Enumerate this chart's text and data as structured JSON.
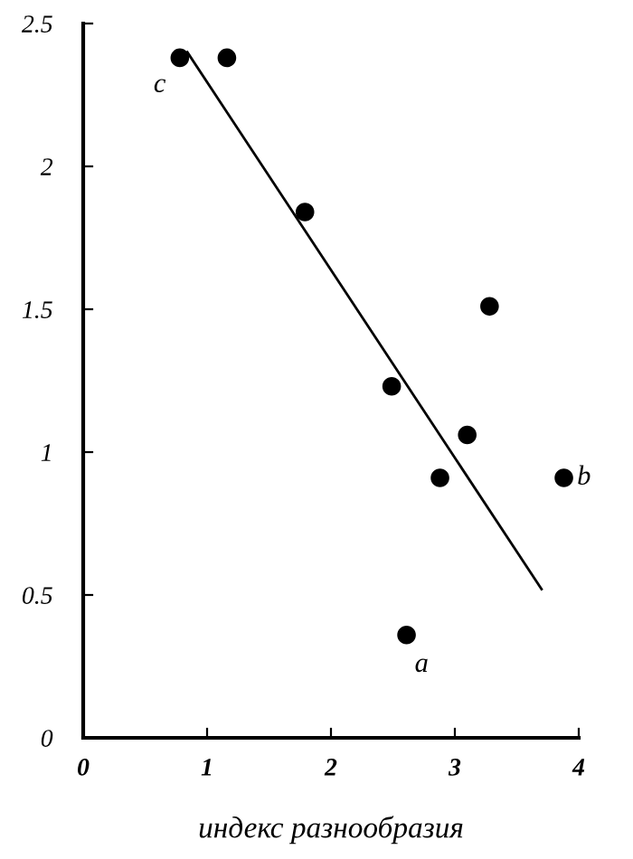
{
  "chart_data": {
    "type": "scatter",
    "xlabel": "индекс разнообразия",
    "xlim": [
      0,
      4
    ],
    "ylim": [
      0,
      2.5
    ],
    "xticks": [
      0,
      1,
      2,
      3,
      4
    ],
    "yticks": [
      0,
      0.5,
      1,
      1.5,
      2,
      2.5
    ],
    "grid": false,
    "legend": false,
    "marker": "circle",
    "series": [
      {
        "color": "#000000",
        "x": [
          0.78,
          1.16,
          1.79,
          2.49,
          3.28,
          3.1,
          2.88,
          3.88,
          2.61
        ],
        "values": [
          2.38,
          2.38,
          1.84,
          1.23,
          1.51,
          1.06,
          0.91,
          0.91,
          0.36
        ]
      },
      {
        "type": "line",
        "color": "#000000",
        "line_style": "solid",
        "marker": "none",
        "x": [
          0.84,
          3.7
        ],
        "values": [
          2.4,
          0.52
        ]
      }
    ],
    "annotations": [
      {
        "text": "c",
        "x": 0.78,
        "y": 2.38
      },
      {
        "text": "b",
        "x": 3.88,
        "y": 0.91
      },
      {
        "text": "a",
        "x": 2.61,
        "y": 0.36
      }
    ]
  }
}
